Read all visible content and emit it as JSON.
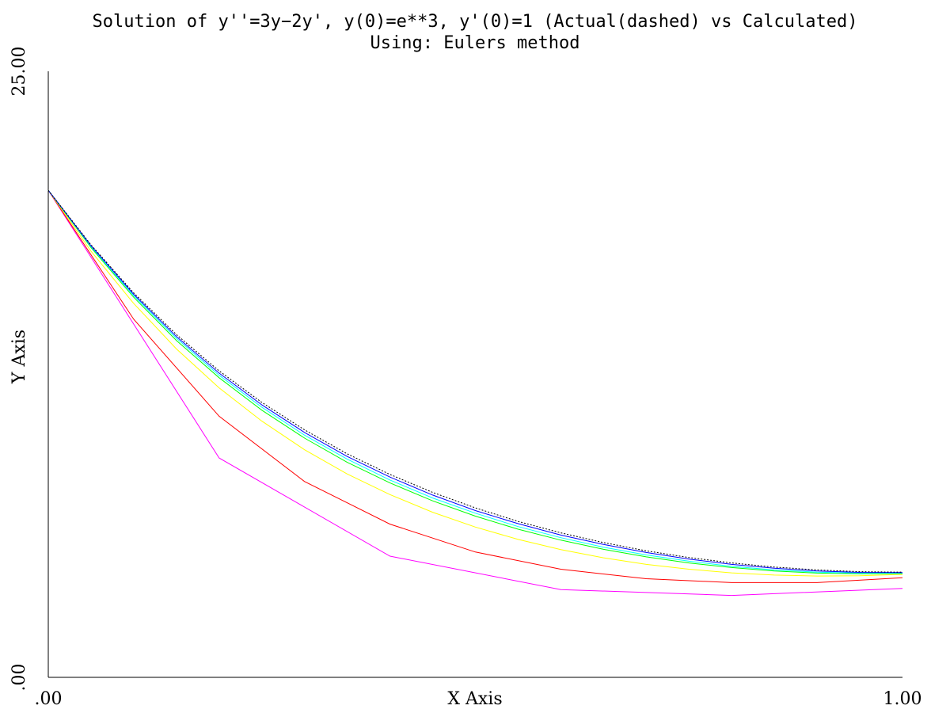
{
  "chart_data": {
    "type": "line",
    "title": "Solution of y''=3y−2y', y(0)=e**3, y'(0)=1 (Actual(dashed) vs Calculated)",
    "subtitle": "Using: Eulers method",
    "xlabel": "X Axis",
    "ylabel": "Y Axis",
    "xlim": [
      0,
      1
    ],
    "ylim": [
      0,
      25
    ],
    "x_tick_labels": [
      ".00",
      "1.00"
    ],
    "y_tick_labels": [
      ".00",
      "25.00"
    ],
    "grid": false,
    "series": [
      {
        "color": "#ff00ff",
        "dashed": false,
        "points": [
          [
            0,
            20.09
          ],
          [
            0.2,
            9.05
          ],
          [
            0.4,
            5.0
          ],
          [
            0.6,
            3.62
          ],
          [
            0.8,
            3.38
          ],
          [
            1.0,
            3.67
          ]
        ]
      },
      {
        "color": "#ff0000",
        "dashed": false,
        "points": [
          [
            0,
            20.09
          ],
          [
            0.1,
            14.77
          ],
          [
            0.2,
            10.77
          ],
          [
            0.3,
            8.08
          ],
          [
            0.4,
            6.32
          ],
          [
            0.5,
            5.17
          ],
          [
            0.6,
            4.46
          ],
          [
            0.7,
            4.07
          ],
          [
            0.8,
            3.91
          ],
          [
            0.9,
            3.91
          ],
          [
            1.0,
            4.11
          ]
        ]
      },
      {
        "color": "#ffff00",
        "dashed": false,
        "points": [
          [
            0,
            20.09
          ],
          [
            0.05,
            17.58
          ],
          [
            0.1,
            15.42
          ],
          [
            0.15,
            13.55
          ],
          [
            0.2,
            11.94
          ],
          [
            0.25,
            10.57
          ],
          [
            0.3,
            9.39
          ],
          [
            0.35,
            8.39
          ],
          [
            0.4,
            7.54
          ],
          [
            0.45,
            6.81
          ],
          [
            0.5,
            6.2
          ],
          [
            0.55,
            5.69
          ],
          [
            0.6,
            5.27
          ],
          [
            0.65,
            4.93
          ],
          [
            0.7,
            4.66
          ],
          [
            0.75,
            4.46
          ],
          [
            0.8,
            4.31
          ],
          [
            0.85,
            4.22
          ],
          [
            0.9,
            4.18
          ],
          [
            0.95,
            4.19
          ],
          [
            1.0,
            4.25
          ]
        ]
      },
      {
        "color": "#00ff00",
        "dashed": false,
        "points": [
          [
            0,
            20.09
          ],
          [
            0.05,
            17.73
          ],
          [
            0.1,
            15.68
          ],
          [
            0.15,
            13.9
          ],
          [
            0.2,
            12.36
          ],
          [
            0.25,
            11.02
          ],
          [
            0.3,
            9.87
          ],
          [
            0.35,
            8.87
          ],
          [
            0.4,
            8.02
          ],
          [
            0.45,
            7.28
          ],
          [
            0.5,
            6.65
          ],
          [
            0.55,
            6.11
          ],
          [
            0.6,
            5.66
          ],
          [
            0.65,
            5.28
          ],
          [
            0.7,
            4.97
          ],
          [
            0.75,
            4.72
          ],
          [
            0.8,
            4.53
          ],
          [
            0.85,
            4.39
          ],
          [
            0.9,
            4.3
          ],
          [
            0.95,
            4.27
          ],
          [
            1.0,
            4.28
          ]
        ]
      },
      {
        "color": "#00ffff",
        "dashed": false,
        "points": [
          [
            0,
            20.09
          ],
          [
            0.05,
            17.77
          ],
          [
            0.1,
            15.75
          ],
          [
            0.15,
            13.99
          ],
          [
            0.2,
            12.46
          ],
          [
            0.25,
            11.14
          ],
          [
            0.3,
            9.99
          ],
          [
            0.35,
            9.0
          ],
          [
            0.4,
            8.14
          ],
          [
            0.45,
            7.4
          ],
          [
            0.5,
            6.77
          ],
          [
            0.55,
            6.22
          ],
          [
            0.6,
            5.76
          ],
          [
            0.65,
            5.37
          ],
          [
            0.7,
            5.05
          ],
          [
            0.75,
            4.79
          ],
          [
            0.8,
            4.58
          ],
          [
            0.85,
            4.43
          ],
          [
            0.9,
            4.34
          ],
          [
            0.95,
            4.3
          ],
          [
            1.0,
            4.3
          ]
        ]
      },
      {
        "color": "#0000ff",
        "dashed": false,
        "points": [
          [
            0,
            20.09
          ],
          [
            0.05,
            17.8
          ],
          [
            0.1,
            15.8
          ],
          [
            0.15,
            14.06
          ],
          [
            0.2,
            12.55
          ],
          [
            0.25,
            11.24
          ],
          [
            0.3,
            10.1
          ],
          [
            0.35,
            9.11
          ],
          [
            0.4,
            8.26
          ],
          [
            0.45,
            7.52
          ],
          [
            0.5,
            6.88
          ],
          [
            0.55,
            6.34
          ],
          [
            0.6,
            5.87
          ],
          [
            0.65,
            5.48
          ],
          [
            0.7,
            5.15
          ],
          [
            0.75,
            4.88
          ],
          [
            0.8,
            4.66
          ],
          [
            0.85,
            4.5
          ],
          [
            0.9,
            4.39
          ],
          [
            0.95,
            4.33
          ],
          [
            1.0,
            4.32
          ]
        ]
      },
      {
        "color": "#000000",
        "dashed": true,
        "points": [
          [
            0,
            20.09
          ],
          [
            0.05,
            17.84
          ],
          [
            0.1,
            15.86
          ],
          [
            0.15,
            14.14
          ],
          [
            0.2,
            12.64
          ],
          [
            0.25,
            11.34
          ],
          [
            0.3,
            10.21
          ],
          [
            0.35,
            9.22
          ],
          [
            0.4,
            8.37
          ],
          [
            0.45,
            7.63
          ],
          [
            0.5,
            6.99
          ],
          [
            0.55,
            6.43
          ],
          [
            0.6,
            5.96
          ],
          [
            0.65,
            5.56
          ],
          [
            0.7,
            5.22
          ],
          [
            0.75,
            4.94
          ],
          [
            0.8,
            4.72
          ],
          [
            0.85,
            4.55
          ],
          [
            0.9,
            4.43
          ],
          [
            0.95,
            4.36
          ],
          [
            1.0,
            4.34
          ]
        ]
      }
    ]
  }
}
